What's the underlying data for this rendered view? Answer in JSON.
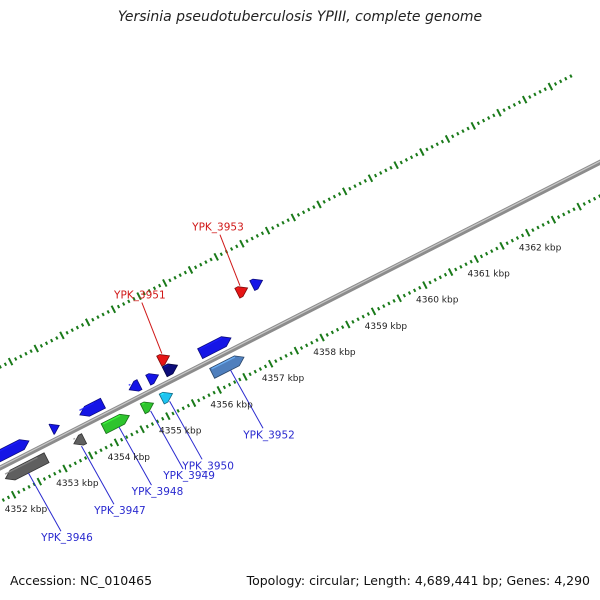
{
  "title": "Yersinia pseudotuberculosis YPIII, complete genome",
  "footer": {
    "accession_label": "Accession:",
    "accession": "NC_010465",
    "topology_label": "Topology:",
    "topology": "circular",
    "length_label": "Length:",
    "length": "4,689,441 bp",
    "genes_label": "Genes:",
    "genes": "4,290"
  },
  "colors": {
    "backbone": "#8c8c8c",
    "dots": "#1a7a1a",
    "blue": "#1515e6",
    "gray": "#5f5f5f",
    "green": "#2ec42e",
    "navy": "#0c0c7a",
    "red": "#e61515",
    "cyan": "#1ec3f0",
    "steel": "#4f7fbd",
    "label_blue": "#2a2acf",
    "label_red": "#d01818",
    "tick_text": "#222222"
  },
  "tick_labels": [
    "4352 kbp",
    "4353 kbp",
    "4354 kbp",
    "4355 kbp",
    "4356 kbp",
    "4357 kbp",
    "4358 kbp",
    "4359 kbp",
    "4360 kbp",
    "4361 kbp",
    "4362 kbp"
  ],
  "genes": [
    {
      "name": "",
      "lane": 1,
      "start": 4351.75,
      "end": 4352.66,
      "color": "blue",
      "strand": "+"
    },
    {
      "name": "YPK_3946",
      "lane": -1,
      "start": 4352.0,
      "end": 4352.8,
      "color": "gray",
      "strand": "-"
    },
    {
      "name": "",
      "lane": 1,
      "start": 4353.1,
      "end": 4353.25,
      "color": "blue",
      "strand": "+"
    },
    {
      "name": "YPK_3947",
      "lane": -1,
      "start": 4353.33,
      "end": 4353.53,
      "color": "gray",
      "strand": "-"
    },
    {
      "name": "",
      "lane": 1,
      "start": 4353.65,
      "end": 4354.1,
      "color": "blue",
      "strand": "-"
    },
    {
      "name": "YPK_3948",
      "lane": -1,
      "start": 4353.91,
      "end": 4354.41,
      "color": "green",
      "strand": "+"
    },
    {
      "name": "",
      "lane": 1,
      "start": 4354.61,
      "end": 4354.81,
      "color": "blue",
      "strand": "-"
    },
    {
      "name": "YPK_3949",
      "lane": -1,
      "start": 4354.67,
      "end": 4354.88,
      "color": "green",
      "strand": "+"
    },
    {
      "name": "",
      "lane": 1,
      "start": 4354.98,
      "end": 4355.18,
      "color": "blue",
      "strand": "+"
    },
    {
      "name": "YPK_3950",
      "lane": -1,
      "start": 4355.04,
      "end": 4355.25,
      "color": "cyan",
      "strand": "+"
    },
    {
      "name": "",
      "lane": 1,
      "start": 4355.3,
      "end": 4355.55,
      "color": "navy",
      "strand": "+"
    },
    {
      "name": "YPK_3951",
      "lane": 2,
      "start": 4355.3,
      "end": 4355.5,
      "color": "red",
      "strand": "+"
    },
    {
      "name": "",
      "lane": 1,
      "start": 4355.99,
      "end": 4356.59,
      "color": "blue",
      "strand": "+"
    },
    {
      "name": "YPK_3952",
      "lane": -1,
      "start": 4356.02,
      "end": 4356.64,
      "color": "steel",
      "strand": "+"
    },
    {
      "name": "YPK_3953",
      "lane": 3,
      "start": 4357.04,
      "end": 4357.24,
      "color": "red",
      "strand": "+"
    },
    {
      "name": "",
      "lane": 3,
      "start": 4357.33,
      "end": 4357.53,
      "color": "blue",
      "strand": "+"
    }
  ]
}
